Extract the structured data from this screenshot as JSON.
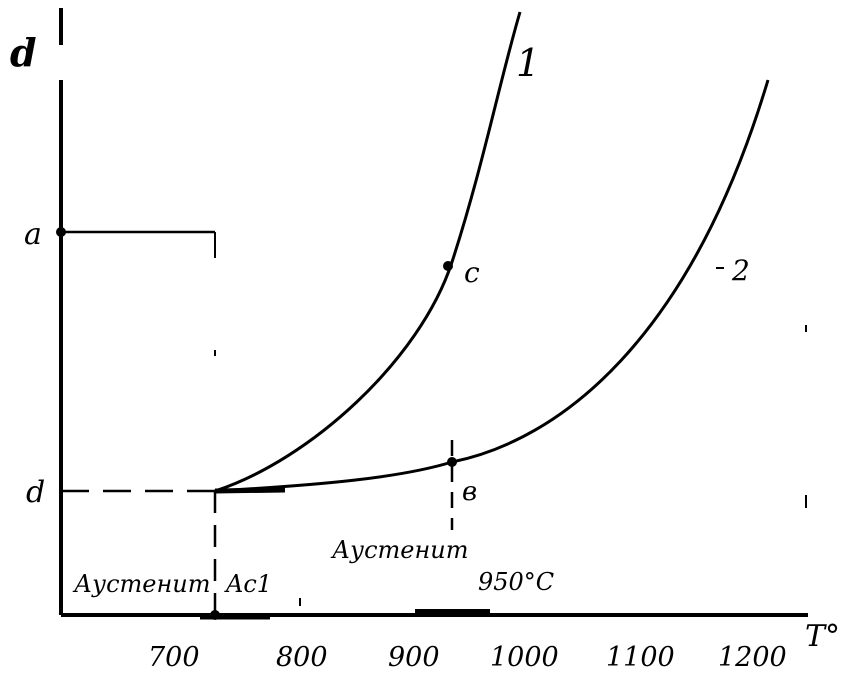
{
  "y_axis_label": "d",
  "x_axis_label": "T°",
  "y_levels": {
    "upper": "a",
    "lower": "d"
  },
  "x_ticks": [
    "700",
    "800",
    "900",
    "1000",
    "1100",
    "1200"
  ],
  "curves": [
    {
      "label": "1",
      "point_label": "c"
    },
    {
      "label": "2",
      "point_label": "в"
    }
  ],
  "annotations": {
    "left_region": "Аустенит",
    "ac1": "Ac1",
    "growth": "Аустенит",
    "temp": "950°C"
  }
}
